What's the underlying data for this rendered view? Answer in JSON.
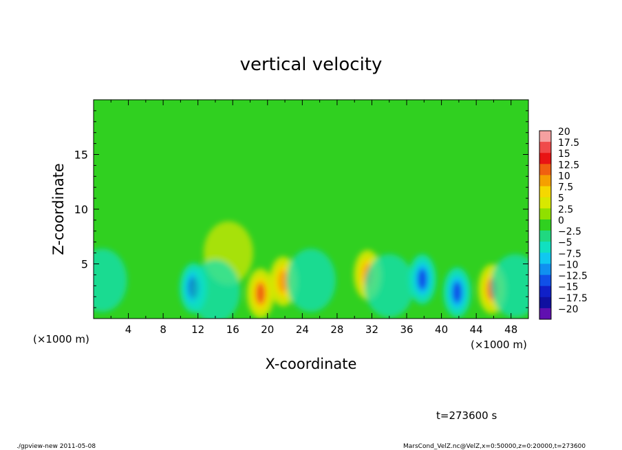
{
  "chart_data": {
    "type": "heatmap",
    "title": "vertical velocity",
    "xlabel": "X-coordinate",
    "ylabel": "Z-coordinate",
    "x_unit_left": "(×1000 m)",
    "x_unit_right": "(×1000 m)",
    "xlim": [
      0,
      50
    ],
    "ylim": [
      0,
      20
    ],
    "x_ticks": [
      4,
      8,
      12,
      16,
      20,
      24,
      28,
      32,
      36,
      40,
      44,
      48
    ],
    "x_tick_labels": [
      "4",
      "8",
      "12",
      "16",
      "20",
      "24",
      "28",
      "32",
      "36",
      "40",
      "44",
      "48"
    ],
    "y_ticks": [
      5,
      10,
      15
    ],
    "y_tick_labels": [
      "5",
      "10",
      "15"
    ],
    "background_value": 0,
    "colorbar": {
      "labels": [
        "20",
        "17.5",
        "15",
        "12.5",
        "10",
        "7.5",
        "5",
        "2.5",
        "0",
        "−2.5",
        "−5",
        "−7.5",
        "−10",
        "−12.5",
        "−15",
        "−17.5",
        "−20"
      ],
      "colors": [
        "#f5a0a0",
        "#f04a4a",
        "#e81414",
        "#f06010",
        "#f5a000",
        "#f5d800",
        "#d8e800",
        "#90e000",
        "#30d020",
        "#20d880",
        "#10e0c0",
        "#10c8f0",
        "#1090f0",
        "#1050e8",
        "#1020c8",
        "#1010a0",
        "#6010b0"
      ]
    },
    "features": [
      {
        "x": 11.5,
        "z": 2.8,
        "value": -15
      },
      {
        "x": 19.2,
        "z": 2.3,
        "value": 12.5
      },
      {
        "x": 21.8,
        "z": 3.4,
        "value": 10
      },
      {
        "x": 31.5,
        "z": 4.0,
        "value": 10
      },
      {
        "x": 37.8,
        "z": 3.6,
        "value": -12.5
      },
      {
        "x": 41.8,
        "z": 2.4,
        "value": -12.5
      },
      {
        "x": 45.8,
        "z": 2.7,
        "value": 12.5
      },
      {
        "x": 1.0,
        "z": 3.5,
        "value": -5
      },
      {
        "x": 15.5,
        "z": 6.0,
        "value": 5
      },
      {
        "x": 25.0,
        "z": 3.5,
        "value": -5
      },
      {
        "x": 34.0,
        "z": 3.0,
        "value": -5
      },
      {
        "x": 48.5,
        "z": 3.0,
        "value": -5
      },
      {
        "x": 14.0,
        "z": 2.5,
        "value": -5
      }
    ]
  },
  "time_label": "t=273600 s",
  "footer_left": "./gpview-new  2011-05-08",
  "footer_right": "MarsCond_VelZ.nc@VelZ,x=0:50000,z=0:20000,t=273600"
}
